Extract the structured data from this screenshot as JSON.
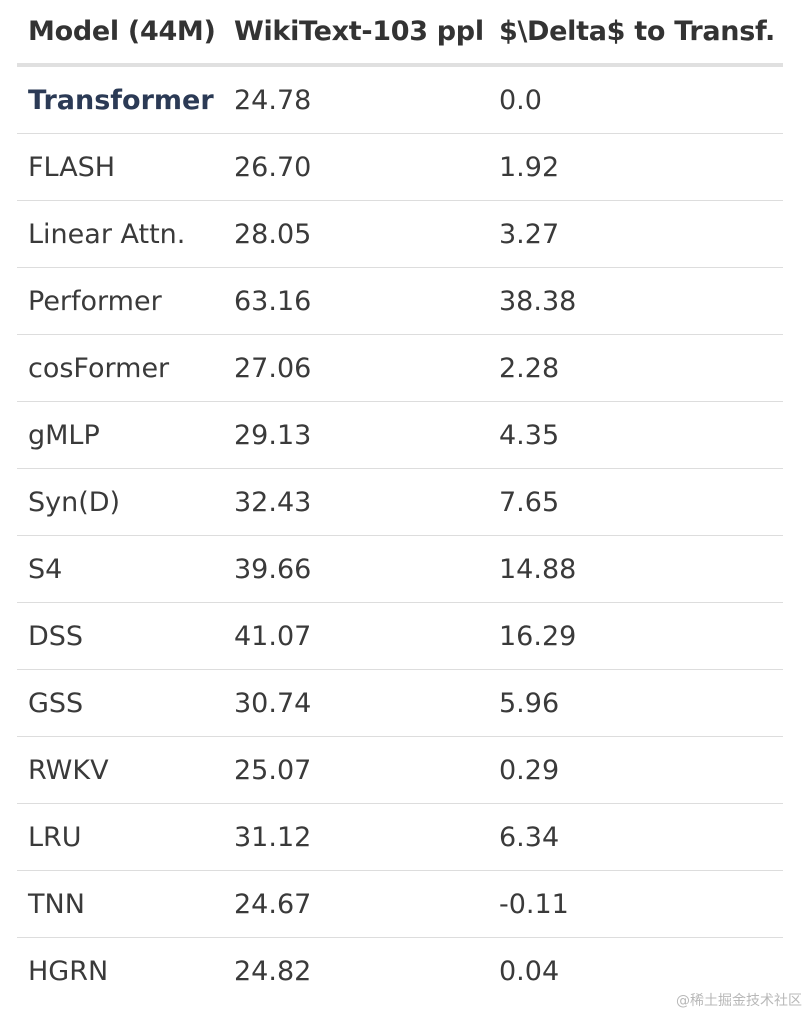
{
  "table": {
    "headers": [
      "Model (44M)",
      "WikiText-103 ppl",
      "$\\Delta$ to Transf."
    ],
    "rows": [
      {
        "model": "Transformer",
        "ppl": "24.78",
        "delta": "0.0",
        "emphasis": true
      },
      {
        "model": "FLASH",
        "ppl": "26.70",
        "delta": "1.92"
      },
      {
        "model": "Linear Attn.",
        "ppl": "28.05",
        "delta": "3.27"
      },
      {
        "model": "Performer",
        "ppl": "63.16",
        "delta": "38.38"
      },
      {
        "model": "cosFormer",
        "ppl": "27.06",
        "delta": "2.28"
      },
      {
        "model": "gMLP",
        "ppl": "29.13",
        "delta": "4.35"
      },
      {
        "model": "Syn(D)",
        "ppl": "32.43",
        "delta": "7.65"
      },
      {
        "model": "S4",
        "ppl": "39.66",
        "delta": "14.88"
      },
      {
        "model": "DSS",
        "ppl": "41.07",
        "delta": "16.29"
      },
      {
        "model": "GSS",
        "ppl": "30.74",
        "delta": "5.96"
      },
      {
        "model": "RWKV",
        "ppl": "25.07",
        "delta": "0.29"
      },
      {
        "model": "LRU",
        "ppl": "31.12",
        "delta": "6.34"
      },
      {
        "model": "TNN",
        "ppl": "24.67",
        "delta": "-0.11"
      },
      {
        "model": "HGRN",
        "ppl": "24.82",
        "delta": "0.04"
      }
    ]
  },
  "watermark": "@稀土掘金技术社区"
}
